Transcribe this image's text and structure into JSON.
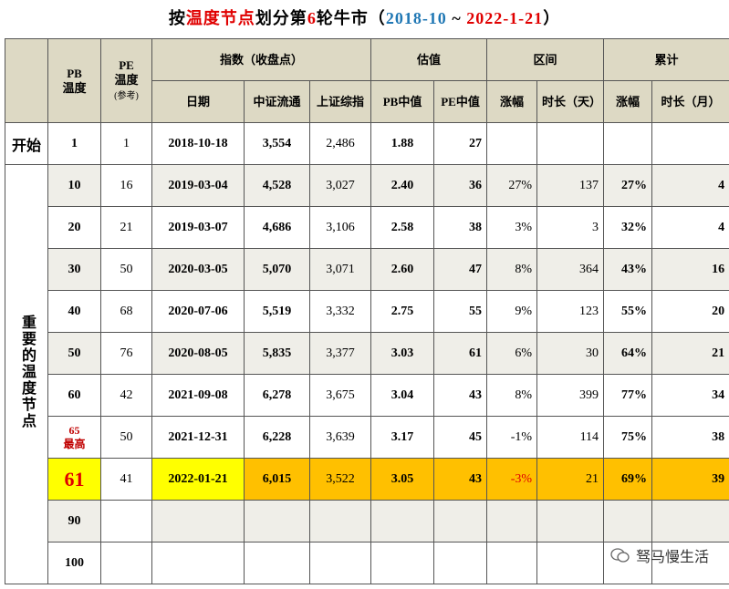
{
  "title": {
    "parts": [
      {
        "text": "按",
        "color": "#000000"
      },
      {
        "text": "温度节点",
        "color": "#e00000"
      },
      {
        "text": "划分第",
        "color": "#000000"
      },
      {
        "text": "6",
        "color": "#e00000"
      },
      {
        "text": "轮牛市（",
        "color": "#000000"
      },
      {
        "text": "2018-10",
        "color": "#1f77b4"
      },
      {
        "text": " ~ ",
        "color": "#000000"
      },
      {
        "text": "2022-1-21",
        "color": "#e00000"
      },
      {
        "text": "）",
        "color": "#000000"
      }
    ]
  },
  "header": {
    "pb": [
      "PB",
      "温度"
    ],
    "pe": [
      "PE",
      "温度",
      "(参考)"
    ],
    "groups": [
      "指数（收盘点）",
      "估值",
      "区间",
      "累计"
    ],
    "sub": [
      "日期",
      "中证流通",
      "上证综指",
      "PB中值",
      "PE中值",
      "涨幅",
      "时长（天）",
      "涨幅",
      "时长（月）"
    ]
  },
  "side_labels": [
    "开始",
    "重要的温度节点"
  ],
  "rows": [
    {
      "cells": [
        "1",
        "1",
        "2018-10-18",
        "3,554",
        "2,486",
        "1.88",
        "27"
      ]
    },
    {
      "cells": [
        "10",
        "16",
        "2019-03-04",
        "4,528",
        "3,027",
        "2.40",
        "36",
        "27%",
        "137",
        "27%",
        "4"
      ],
      "shaded": true
    },
    {
      "cells": [
        "20",
        "21",
        "2019-03-07",
        "4,686",
        "3,106",
        "2.58",
        "38",
        "3%",
        "3",
        "32%",
        "4"
      ]
    },
    {
      "cells": [
        "30",
        "50",
        "2020-03-05",
        "5,070",
        "3,071",
        "2.60",
        "47",
        "8%",
        "364",
        "43%",
        "16"
      ],
      "shaded": true
    },
    {
      "cells": [
        "40",
        "68",
        "2020-07-06",
        "5,519",
        "3,332",
        "2.75",
        "55",
        "9%",
        "123",
        "55%",
        "20"
      ]
    },
    {
      "cells": [
        "50",
        "76",
        "2020-08-05",
        "5,835",
        "3,377",
        "3.03",
        "61",
        "6%",
        "30",
        "64%",
        "21"
      ],
      "shaded": true
    },
    {
      "cells": [
        "60",
        "42",
        "2021-09-08",
        "6,278",
        "3,675",
        "3.04",
        "43",
        "8%",
        "399",
        "77%",
        "34"
      ]
    },
    {
      "cells": [
        "65",
        "50",
        "2021-12-31",
        "6,228",
        "3,639",
        "3.17",
        "45",
        "-1%",
        "114",
        "75%",
        "38"
      ],
      "note": "最高",
      "text_colors": [
        "#c00000"
      ]
    },
    {
      "cells": [
        "61",
        "41",
        "2022-01-21",
        "6,015",
        "3,522",
        "3.05",
        "43",
        "-3%",
        "21",
        "69%",
        "39"
      ],
      "cell_colors": [
        "#ffff00",
        "#ffffff",
        "#ffff00",
        "#ffc000",
        "#ffc000",
        "#ffc000",
        "#ffc000",
        "#ffc000",
        "#ffc000",
        "#ffc000",
        "#ffc000"
      ],
      "text_colors": [
        "#e00000",
        null,
        null,
        null,
        null,
        null,
        null,
        "#e00000",
        null,
        null,
        null
      ]
    },
    {
      "cells": [
        "90"
      ],
      "shaded": true
    },
    {
      "cells": [
        "100"
      ]
    }
  ],
  "watermark": "驽马慢生活"
}
